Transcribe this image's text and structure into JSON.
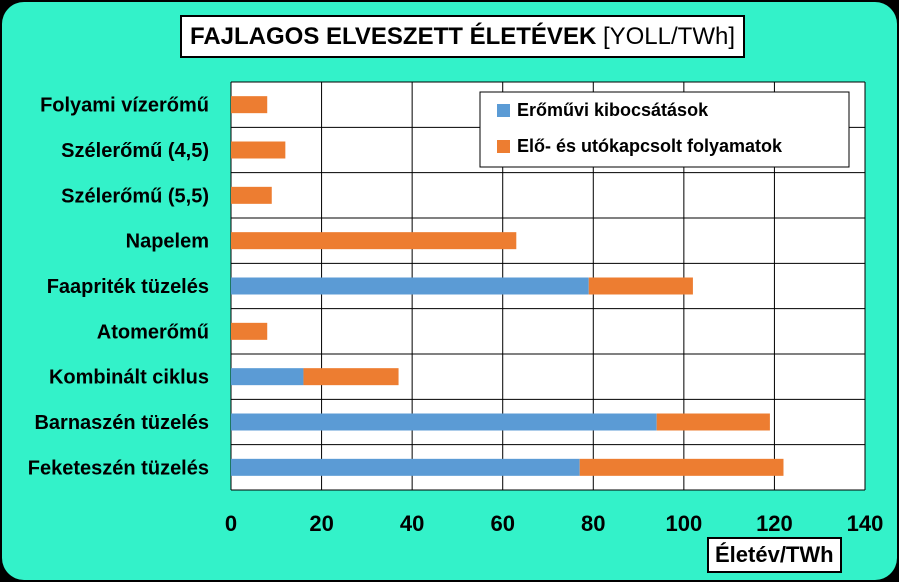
{
  "chart_data": {
    "type": "bar",
    "orientation": "horizontal",
    "stacked": true,
    "title": "FAJLAGOS ELVESZETT ÉLETÉVEK",
    "title_unit": "[YOLL/TWh]",
    "xlabel": "Életév/TWh",
    "ylabel": "",
    "xlim": [
      0,
      140
    ],
    "xticks": [
      0,
      20,
      40,
      60,
      80,
      100,
      120,
      140
    ],
    "grid": true,
    "legend_position": "top-right",
    "categories": [
      "Folyami vízerőmű",
      "Szélerőmű (4,5)",
      "Szélerőmű (5,5)",
      "Napelem",
      "Faapriték tüzelés",
      "Atomerőmű",
      "Kombinált ciklus",
      "Barnaszén tüzelés",
      "Feketeszén tüzelés"
    ],
    "series": [
      {
        "name": "Erőművi kibocsátások",
        "color": "#5b9bd5",
        "values": [
          0,
          0,
          0,
          0,
          79,
          0,
          16,
          94,
          77
        ]
      },
      {
        "name": "Elő- és utókapcsolt folyamatok",
        "color": "#ed7d31",
        "values": [
          8,
          12,
          9,
          63,
          23,
          8,
          21,
          25,
          45
        ]
      }
    ]
  },
  "colors": {
    "panel_background": "#33f2c9",
    "plot_background": "#ffffff",
    "grid": "#000000"
  }
}
